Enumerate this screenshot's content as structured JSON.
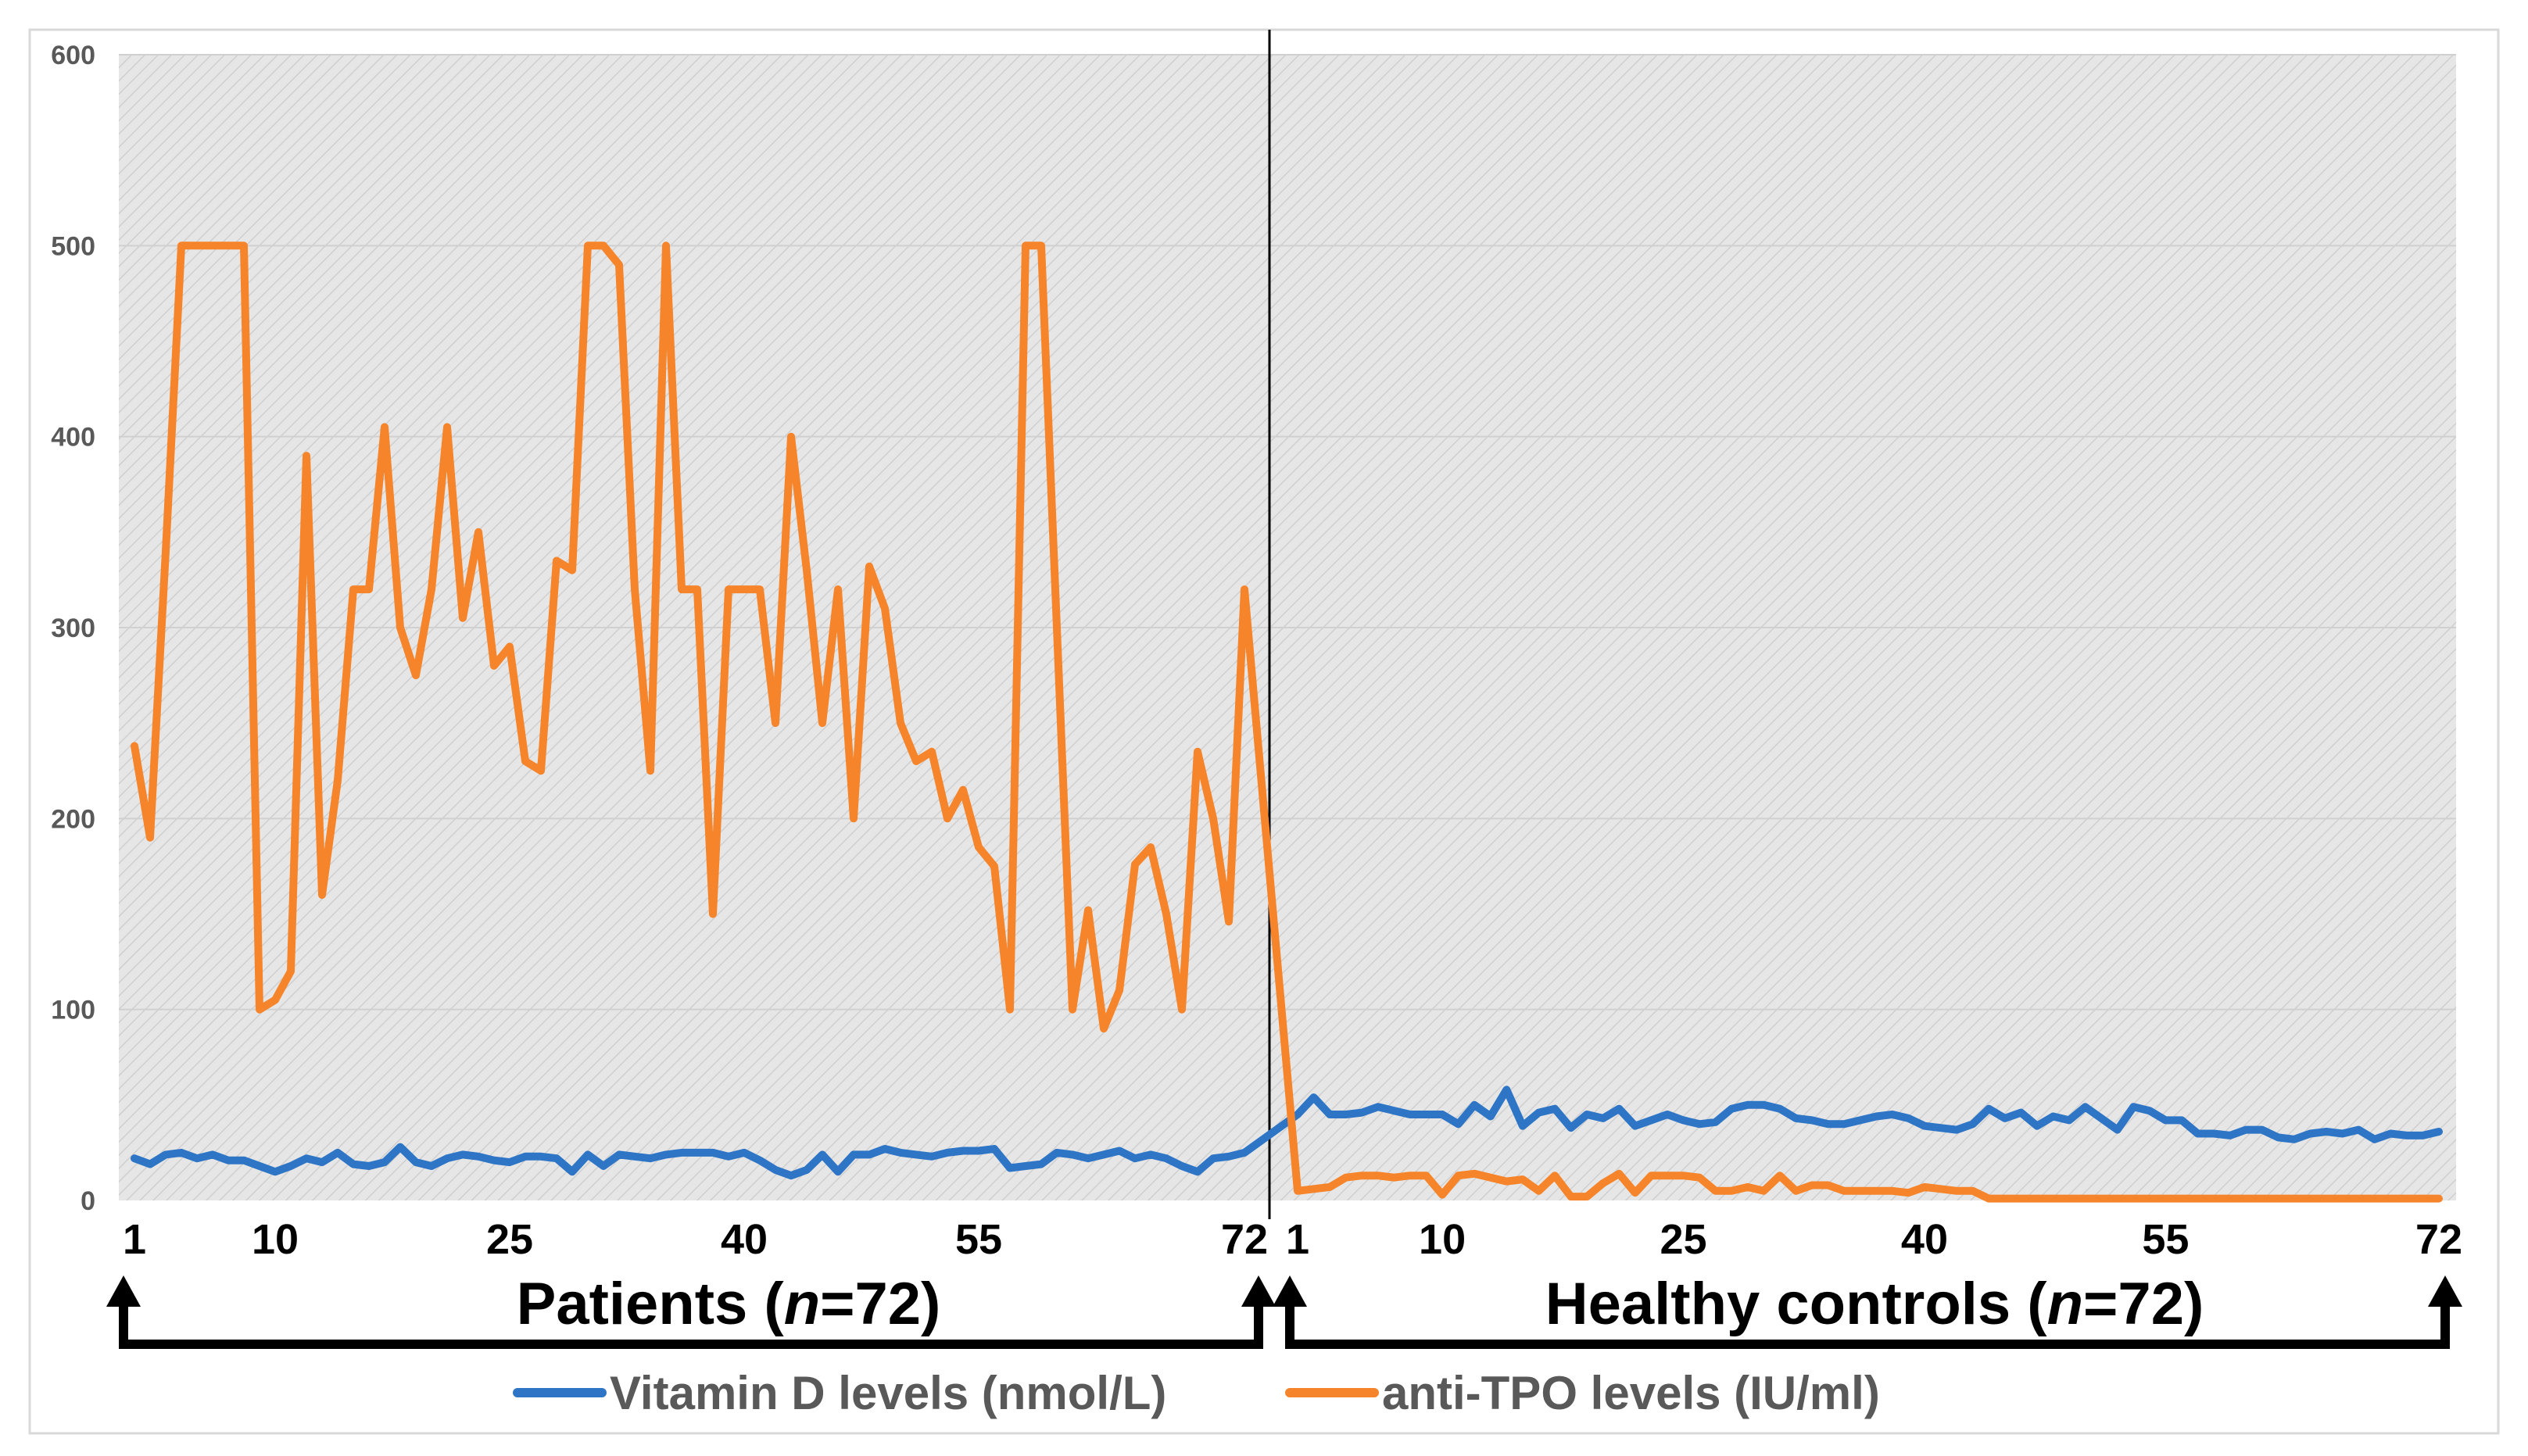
{
  "chart_data": {
    "type": "line",
    "title": "",
    "xlabel": "",
    "ylabel": "",
    "ylim": [
      0,
      600
    ],
    "yticks": [
      "0",
      "100",
      "200",
      "300",
      "400",
      "500",
      "600"
    ],
    "grid": true,
    "legend_position": "bottom",
    "groups": [
      {
        "name": "Patients",
        "label_prefix": "Patients  (",
        "label_n": "n",
        "label_suffix": "=72)",
        "tick_labels": [
          "1",
          "10",
          "25",
          "40",
          "55",
          "72"
        ],
        "tick_indices": [
          1,
          10,
          25,
          40,
          55,
          72
        ]
      },
      {
        "name": "Healthy controls",
        "label_prefix": "Healthy controls  (",
        "label_n": "n",
        "label_suffix": "=72)",
        "tick_labels": [
          "1",
          "10",
          "25",
          "40",
          "55",
          "72"
        ],
        "tick_indices": [
          1,
          10,
          25,
          40,
          55,
          72
        ]
      }
    ],
    "series": [
      {
        "name": "Vitamin D levels (nmol/L)",
        "color": "#2e75c6",
        "patients": [
          22,
          19,
          24,
          25,
          22,
          24,
          21,
          21,
          18,
          15,
          18,
          22,
          20,
          25,
          19,
          18,
          20,
          28,
          20,
          18,
          22,
          24,
          23,
          21,
          20,
          23,
          23,
          22,
          15,
          24,
          18,
          24,
          23,
          22,
          24,
          25,
          25,
          25,
          23,
          25,
          21,
          16,
          13,
          16,
          24,
          15,
          24,
          24,
          27,
          25,
          24,
          23,
          25,
          26,
          26,
          27,
          17,
          18,
          19,
          25,
          24,
          22,
          24,
          26,
          22,
          24,
          22,
          18,
          15,
          22,
          23,
          25
        ],
        "controls": [
          45,
          54,
          45,
          45,
          46,
          49,
          47,
          45,
          45,
          45,
          40,
          50,
          44,
          58,
          39,
          46,
          48,
          38,
          45,
          43,
          48,
          39,
          42,
          45,
          42,
          40,
          41,
          48,
          50,
          50,
          48,
          43,
          42,
          40,
          40,
          42,
          44,
          45,
          43,
          39,
          38,
          37,
          40,
          48,
          43,
          46,
          39,
          44,
          42,
          49,
          43,
          37,
          49,
          47,
          42,
          42,
          35,
          35,
          34,
          37,
          37,
          33,
          32,
          35,
          36,
          35,
          37,
          32,
          35,
          34,
          34,
          36
        ]
      },
      {
        "name": "anti-TPO levels (IU/ml)",
        "color": "#f5842a",
        "patients": [
          238,
          190,
          340,
          500,
          500,
          500,
          500,
          500,
          100,
          105,
          120,
          390,
          160,
          220,
          320,
          320,
          405,
          300,
          275,
          320,
          405,
          305,
          350,
          280,
          290,
          230,
          225,
          335,
          330,
          500,
          500,
          490,
          320,
          225,
          500,
          320,
          320,
          150,
          320,
          320,
          320,
          250,
          400,
          330,
          250,
          320,
          200,
          332,
          310,
          250,
          230,
          235,
          200,
          215,
          185,
          175,
          100,
          500,
          500,
          300,
          100,
          152,
          90,
          110,
          176,
          185,
          150,
          100,
          235,
          200,
          146,
          320
        ],
        "controls": [
          5,
          6,
          7,
          12,
          13,
          13,
          12,
          13,
          13,
          3,
          13,
          14,
          12,
          10,
          11,
          5,
          13,
          2,
          2,
          9,
          14,
          4,
          13,
          13,
          13,
          12,
          5,
          5,
          7,
          5,
          13,
          5,
          8,
          8,
          5,
          5,
          5,
          5,
          4,
          7,
          6,
          5,
          5,
          1,
          1,
          1,
          1,
          1,
          1,
          1,
          1,
          1,
          1,
          1,
          1,
          1,
          1,
          1,
          1,
          1,
          1,
          1,
          1,
          1,
          1,
          1,
          1,
          1,
          1,
          1,
          1,
          1
        ]
      }
    ]
  }
}
